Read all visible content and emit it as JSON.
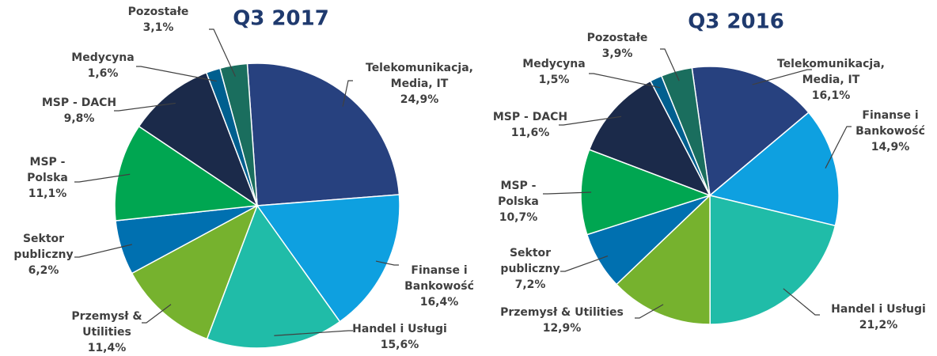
{
  "chart_data": [
    {
      "type": "pie",
      "title": "Q3 2017",
      "categories": [
        "Telekomunikacja, Media, IT",
        "Finanse i Bankowość",
        "Handel i Usługi",
        "Przemysł & Utilities",
        "Sektor publiczny",
        "MSP - Polska",
        "MSP - DACH",
        "Medycyna",
        "Pozostałe"
      ],
      "values": [
        24.9,
        16.4,
        15.6,
        11.4,
        6.2,
        11.1,
        9.8,
        1.6,
        3.1
      ],
      "value_labels": [
        "24,9%",
        "16,4%",
        "15,6%",
        "11,4%",
        "6,2%",
        "11,1%",
        "9,8%",
        "1,6%",
        "3,1%"
      ],
      "colors": [
        "#27417f",
        "#0ea0e0",
        "#20bca8",
        "#76b22e",
        "#0070b0",
        "#00a651",
        "#1b2a4a",
        "#005f8f",
        "#1a6e5e"
      ]
    },
    {
      "type": "pie",
      "title": "Q3 2016",
      "categories": [
        "Telekomunikacja, Media, IT",
        "Finanse i Bankowość",
        "Handel i Usługi",
        "Przemysł & Utilities",
        "Sektor publiczny",
        "MSP - Polska",
        "MSP - DACH",
        "Medycyna",
        "Pozostałe"
      ],
      "values": [
        16.1,
        14.9,
        21.2,
        12.9,
        7.2,
        10.7,
        11.6,
        1.5,
        3.9
      ],
      "value_labels": [
        "16,1%",
        "14,9%",
        "21,2%",
        "12,9%",
        "7,2%",
        "10,7%",
        "11,6%",
        "1,5%",
        "3,9%"
      ],
      "colors": [
        "#27417f",
        "#0ea0e0",
        "#20bca8",
        "#76b22e",
        "#0070b0",
        "#00a651",
        "#1b2a4a",
        "#005f8f",
        "#1a6e5e"
      ]
    }
  ]
}
